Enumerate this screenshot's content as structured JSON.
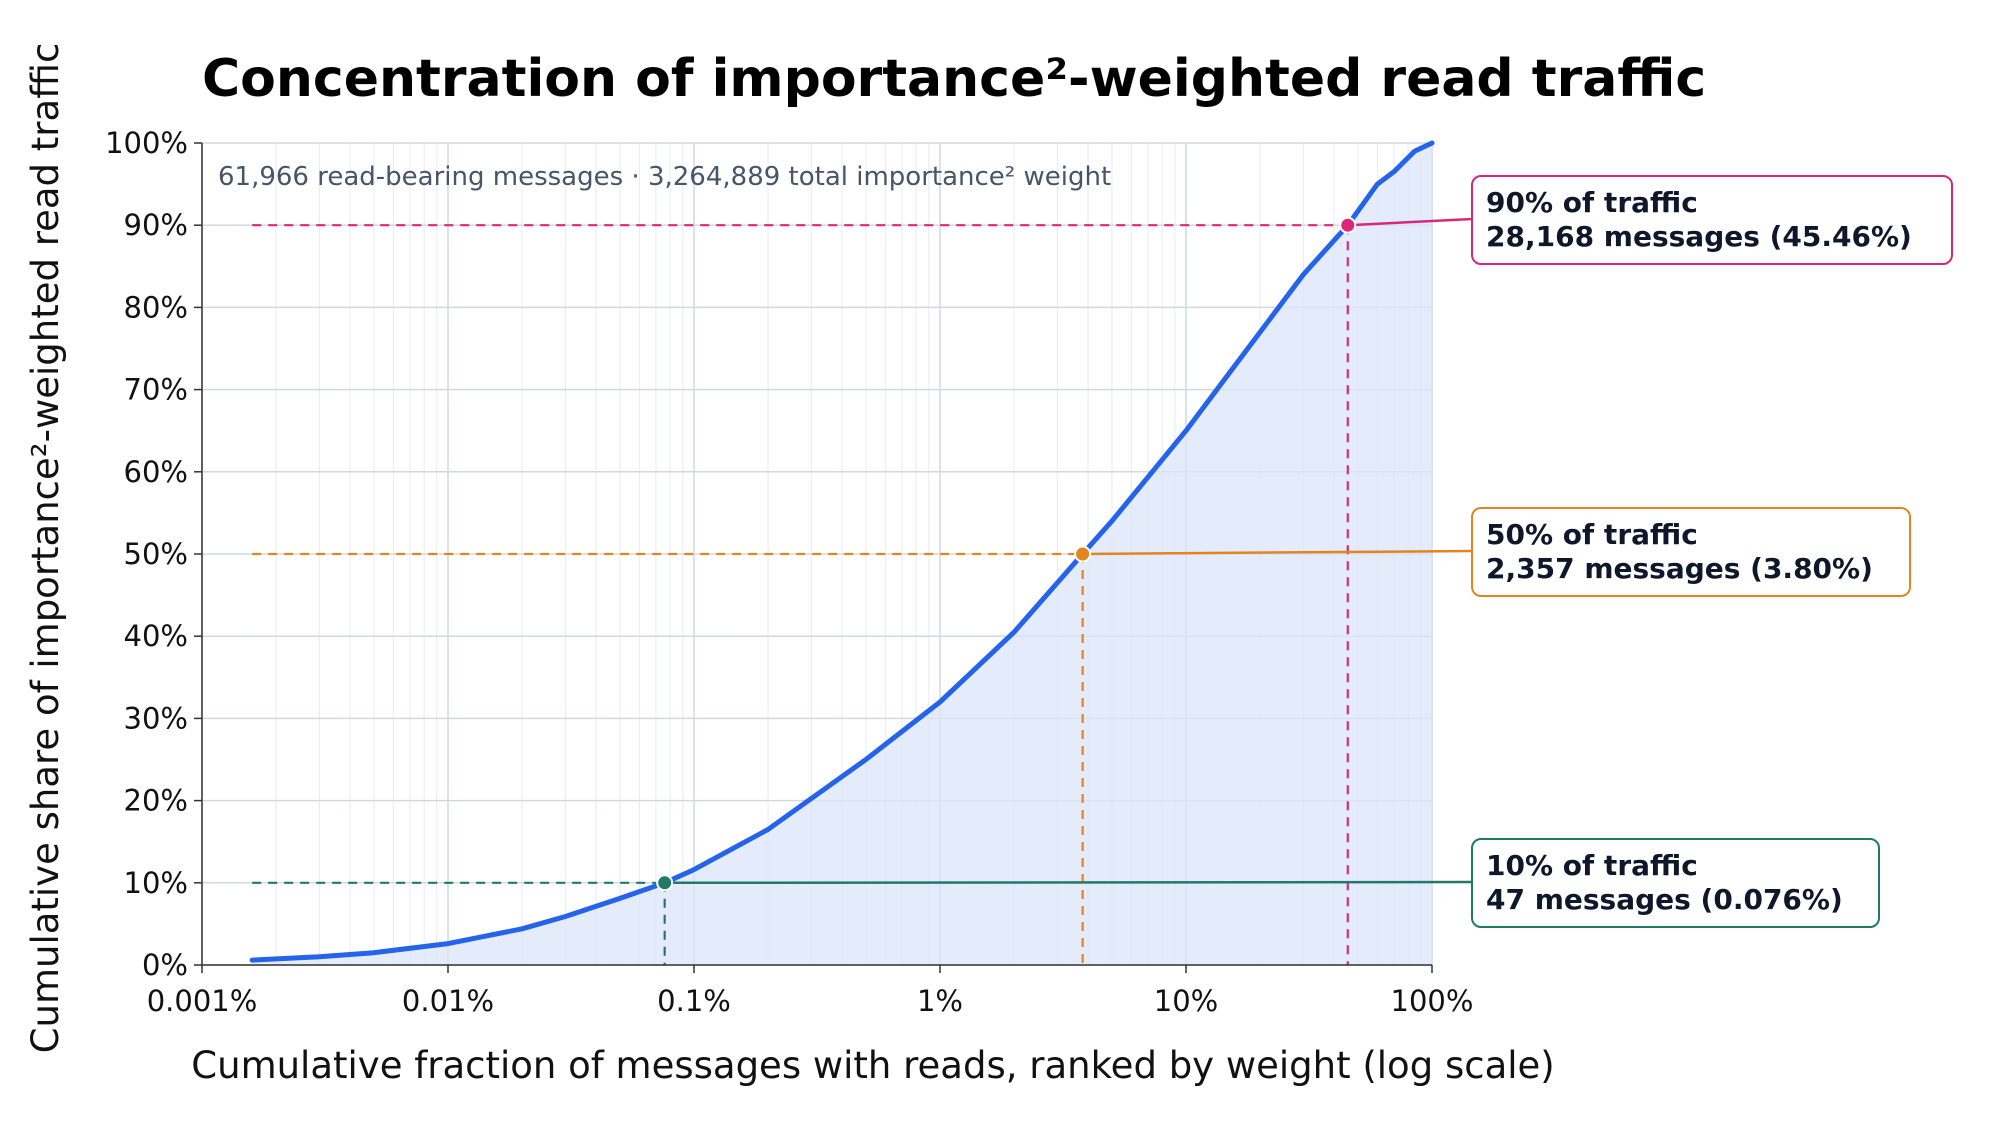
{
  "colors": {
    "line": "#2563eb",
    "fill": "#dbe6fb",
    "grid_major": "#cfd8e3",
    "grid_minor": "#eaeef4",
    "p90": "#db2777",
    "p50": "#e2851f",
    "p10": "#1f7a66",
    "axis": "#333333"
  },
  "chart_data": {
    "type": "line",
    "title": "Concentration of importance²-weighted read traffic",
    "subtitle": "61,966 read-bearing messages · 3,264,889 total importance² weight",
    "xlabel": "Cumulative fraction of messages with reads, ranked by weight (log scale)",
    "ylabel": "Cumulative share of importance²-weighted read traffic",
    "x_scale": "log",
    "x_unit": "percent of messages",
    "y_unit": "percent of weighted traffic",
    "xlim": [
      0.001,
      100
    ],
    "ylim": [
      0,
      100
    ],
    "x_ticks": [
      {
        "value": 0.001,
        "label": "0.001%"
      },
      {
        "value": 0.01,
        "label": "0.01%"
      },
      {
        "value": 0.1,
        "label": "0.1%"
      },
      {
        "value": 1,
        "label": "1%"
      },
      {
        "value": 10,
        "label": "10%"
      },
      {
        "value": 100,
        "label": "100%"
      }
    ],
    "y_ticks": [
      {
        "value": 0,
        "label": "0%"
      },
      {
        "value": 10,
        "label": "10%"
      },
      {
        "value": 20,
        "label": "20%"
      },
      {
        "value": 30,
        "label": "30%"
      },
      {
        "value": 40,
        "label": "40%"
      },
      {
        "value": 50,
        "label": "50%"
      },
      {
        "value": 60,
        "label": "60%"
      },
      {
        "value": 70,
        "label": "70%"
      },
      {
        "value": 80,
        "label": "80%"
      },
      {
        "value": 90,
        "label": "90%"
      },
      {
        "value": 100,
        "label": "100%"
      }
    ],
    "grid": true,
    "series": [
      {
        "x": [
          0.0016,
          0.003,
          0.005,
          0.01,
          0.02,
          0.03,
          0.05,
          0.076,
          0.1,
          0.2,
          0.5,
          1,
          2,
          3.8,
          5,
          10,
          20,
          30,
          45.46,
          60,
          70,
          85,
          100
        ],
        "y": [
          0.6,
          1.0,
          1.5,
          2.6,
          4.4,
          5.9,
          8.1,
          10,
          11.6,
          16.5,
          25,
          32,
          40.5,
          50,
          54,
          65,
          77,
          84,
          90,
          95,
          96.5,
          99,
          100
        ]
      }
    ],
    "annotations": [
      {
        "key": "p90",
        "x": 45.46,
        "y": 90,
        "line1": "90% of traffic",
        "line2": "28,168 messages (45.46%)"
      },
      {
        "key": "p50",
        "x": 3.8,
        "y": 50,
        "line1": "50% of traffic",
        "line2": "2,357 messages (3.80%)"
      },
      {
        "key": "p10",
        "x": 0.076,
        "y": 10,
        "line1": "10% of traffic",
        "line2": "47 messages (0.076%)"
      }
    ]
  }
}
